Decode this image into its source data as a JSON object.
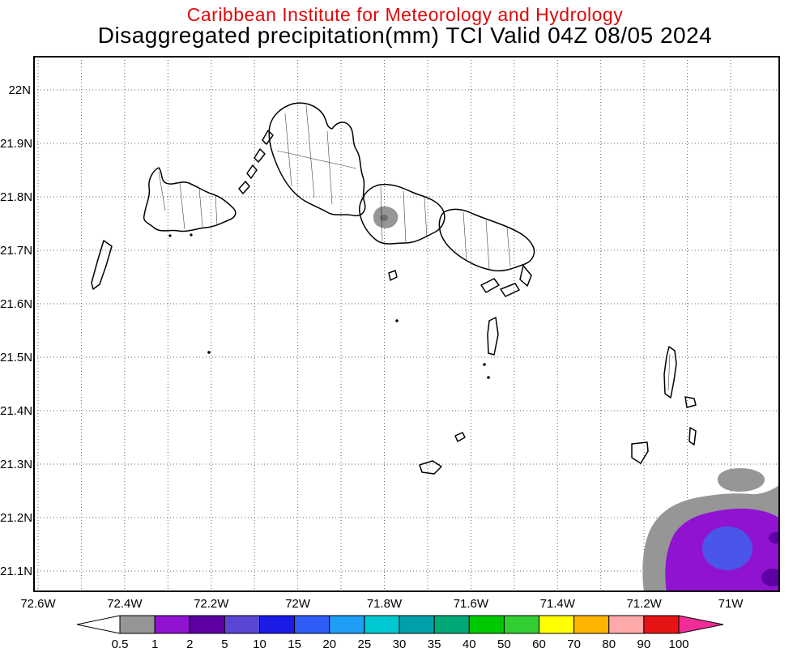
{
  "header": {
    "title_line1": "Caribbean Institute for Meteorology and Hydrology",
    "title_line2": "Disaggregated precipitation(mm) TCI Valid 04Z 08/05 2024"
  },
  "map": {
    "lat_labels": [
      "22N",
      "21.9N",
      "21.8N",
      "21.7N",
      "21.6N",
      "21.5N",
      "21.4N",
      "21.3N",
      "21.2N",
      "21.1N"
    ],
    "lon_labels": [
      "72.6W",
      "72.4W",
      "72.2W",
      "72W",
      "71.8W",
      "71.6W",
      "71.4W",
      "71.2W",
      "71W"
    ]
  },
  "palette": {
    "title_red": "#dc0a0a",
    "grid": "#666666",
    "coast": "#000000",
    "precip_gray": "#969696",
    "precip_gray_dark": "#6f6f6f",
    "precip_purple": "#9013d1",
    "precip_purple_dark": "#5c00a3",
    "precip_blue": "#4a55ea"
  },
  "colorbar": {
    "values": [
      "0.5",
      "1",
      "2",
      "5",
      "10",
      "15",
      "20",
      "25",
      "30",
      "35",
      "40",
      "50",
      "60",
      "70",
      "80",
      "90",
      "100"
    ],
    "colors": [
      "#969696",
      "#9013d1",
      "#5c00a3",
      "#5946d2",
      "#1b1be6",
      "#2e5cf5",
      "#1e9ef5",
      "#00c8d2",
      "#00a0aa",
      "#00a878",
      "#00c800",
      "#32cd32",
      "#ffff00",
      "#ffb400",
      "#ffaaaa",
      "#e61414"
    ],
    "left_arrow_color": "#ffffff",
    "right_arrow_color": "#f02d96"
  },
  "precip_features": [
    {
      "name": "light-patch-middle-caicos",
      "range_mm": "0.5-1"
    },
    {
      "name": "small-gray-patch-southeast",
      "range_mm": "0.5-1"
    },
    {
      "name": "cell-southeast-corner",
      "range_mm": "0.5-10",
      "core_mm": "5-10"
    }
  ]
}
